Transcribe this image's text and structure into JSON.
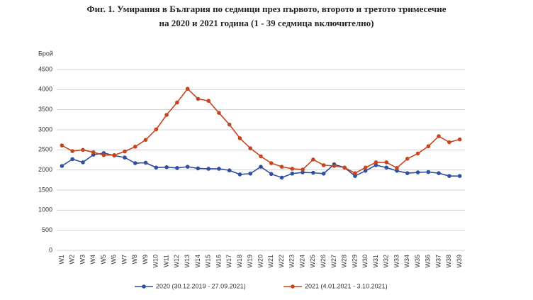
{
  "chart_data": {
    "type": "line",
    "title": [
      "Фиг. 1. Умирания в България по седмици през първото, второто и третото тримесечие",
      "на 2020 и 2021 година (1 - 39 седмица включително)"
    ],
    "y_label": "Брой",
    "categories": [
      "W1",
      "W2",
      "W3",
      "W4",
      "W5",
      "W6",
      "W7",
      "W8",
      "W9",
      "W10",
      "W11",
      "W12",
      "W13",
      "W14",
      "W15",
      "W16",
      "W17",
      "W18",
      "W19",
      "W20",
      "W21",
      "W22",
      "W23",
      "W24",
      "W25",
      "W26",
      "W27",
      "W28",
      "W29",
      "W30",
      "W31",
      "W32",
      "W33",
      "W34",
      "W35",
      "W36",
      "W37",
      "W38",
      "W39"
    ],
    "series": [
      {
        "name": "2020 (30.12.2019 - 27.09.2021)",
        "color": "#2f4f9f",
        "values": [
          2100,
          2270,
          2190,
          2380,
          2420,
          2360,
          2310,
          2170,
          2180,
          2060,
          2070,
          2050,
          2080,
          2040,
          2030,
          2030,
          1990,
          1890,
          1910,
          2080,
          1900,
          1810,
          1910,
          1940,
          1930,
          1910,
          2140,
          2060,
          1850,
          1980,
          2120,
          2060,
          1980,
          1920,
          1940,
          1950,
          1920,
          1850,
          1850
        ]
      },
      {
        "name": "2021 (4.01.2021 - 3.10.2021)",
        "color": "#c4451f",
        "values": [
          2610,
          2470,
          2500,
          2440,
          2370,
          2370,
          2460,
          2580,
          2750,
          3010,
          3370,
          3680,
          4020,
          3770,
          3720,
          3420,
          3130,
          2790,
          2540,
          2340,
          2170,
          2080,
          2030,
          2010,
          2260,
          2120,
          2100,
          2060,
          1920,
          2060,
          2190,
          2190,
          2050,
          2280,
          2410,
          2590,
          2840,
          2690,
          2760
        ]
      }
    ],
    "ylim": [
      0,
      4500
    ],
    "yticks": [
      0,
      500,
      1000,
      1500,
      2000,
      2500,
      3000,
      3500,
      4000,
      4500
    ],
    "grid": true,
    "legend": "bottom"
  }
}
